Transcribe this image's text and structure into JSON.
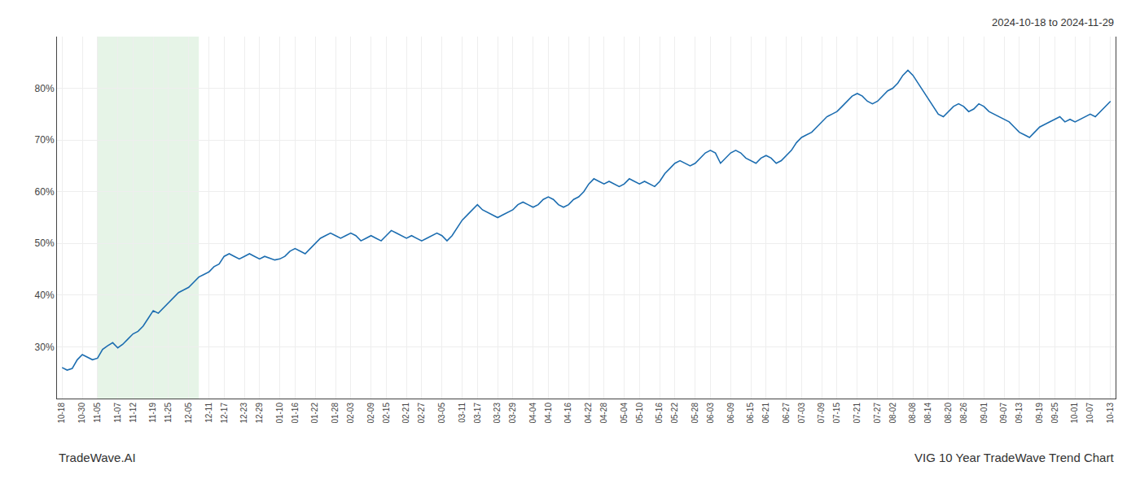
{
  "chart_data": {
    "type": "line",
    "annotations": [
      "2024-10-18 to 2024-11-29",
      "TradeWave.AI",
      "VIG 10 Year TradeWave Trend Chart"
    ],
    "color": "#1c6db0",
    "grid": true,
    "ylim": [
      20,
      90
    ],
    "yticks": [
      {
        "value": 30,
        "label": "30%"
      },
      {
        "value": 40,
        "label": "40%"
      },
      {
        "value": 50,
        "label": "50%"
      },
      {
        "value": 60,
        "label": "60%"
      },
      {
        "value": 70,
        "label": "70%"
      },
      {
        "value": 80,
        "label": "80%"
      }
    ],
    "shaded_range": {
      "start": 7,
      "end": 27,
      "color": "#c8e6c9"
    },
    "categories": [
      "10-18",
      null,
      null,
      null,
      "10-30",
      null,
      null,
      "11-05",
      null,
      null,
      null,
      "11-07",
      null,
      null,
      "11-12",
      null,
      null,
      null,
      "11-19",
      null,
      null,
      "11-25",
      null,
      null,
      null,
      "12-05",
      null,
      null,
      null,
      "12-11",
      null,
      null,
      "12-17",
      null,
      null,
      null,
      "12-23",
      null,
      null,
      "12-29",
      null,
      null,
      null,
      "01-10",
      null,
      null,
      "01-16",
      null,
      null,
      null,
      "01-22",
      null,
      null,
      null,
      "01-28",
      null,
      null,
      "02-03",
      null,
      null,
      null,
      "02-09",
      null,
      null,
      "02-15",
      null,
      null,
      null,
      "02-21",
      null,
      null,
      "02-27",
      null,
      null,
      null,
      "03-05",
      null,
      null,
      null,
      "03-11",
      null,
      null,
      "03-17",
      null,
      null,
      null,
      "03-23",
      null,
      null,
      "03-29",
      null,
      null,
      null,
      "04-04",
      null,
      null,
      "04-10",
      null,
      null,
      null,
      "04-16",
      null,
      null,
      null,
      "04-22",
      null,
      null,
      "04-28",
      null,
      null,
      null,
      "05-04",
      null,
      null,
      "05-10",
      null,
      null,
      null,
      "05-16",
      null,
      null,
      "05-22",
      null,
      null,
      null,
      "05-28",
      null,
      null,
      "06-03",
      null,
      null,
      null,
      "06-09",
      null,
      null,
      null,
      "06-15",
      null,
      null,
      "06-21",
      null,
      null,
      null,
      "06-27",
      null,
      null,
      "07-03",
      null,
      null,
      null,
      "07-09",
      null,
      null,
      "07-15",
      null,
      null,
      null,
      "07-21",
      null,
      null,
      null,
      "07-27",
      null,
      null,
      "08-02",
      null,
      null,
      null,
      "08-08",
      null,
      null,
      "08-14",
      null,
      null,
      null,
      "08-20",
      null,
      null,
      "08-26",
      null,
      null,
      null,
      "09-01",
      null,
      null,
      null,
      "09-07",
      null,
      null,
      "09-13",
      null,
      null,
      null,
      "09-19",
      null,
      null,
      "09-25",
      null,
      null,
      null,
      "10-01",
      null,
      null,
      "10-07",
      null,
      null,
      null,
      "10-13"
    ],
    "values": [
      26.0,
      25.5,
      25.8,
      27.5,
      28.5,
      28.0,
      27.5,
      27.8,
      29.5,
      30.2,
      30.8,
      29.8,
      30.5,
      31.5,
      32.5,
      33.0,
      34.0,
      35.5,
      37.0,
      36.5,
      37.5,
      38.5,
      39.5,
      40.5,
      41.0,
      41.5,
      42.5,
      43.5,
      44.0,
      44.5,
      45.5,
      46.0,
      47.5,
      48.0,
      47.5,
      47.0,
      47.5,
      48.0,
      47.5,
      47.0,
      47.5,
      47.2,
      46.8,
      47.0,
      47.5,
      48.5,
      49.0,
      48.5,
      48.0,
      49.0,
      50.0,
      51.0,
      51.5,
      52.0,
      51.5,
      51.0,
      51.5,
      52.0,
      51.5,
      50.5,
      51.0,
      51.5,
      51.0,
      50.5,
      51.5,
      52.5,
      52.0,
      51.5,
      51.0,
      51.5,
      51.0,
      50.5,
      51.0,
      51.5,
      52.0,
      51.5,
      50.5,
      51.5,
      53.0,
      54.5,
      55.5,
      56.5,
      57.5,
      56.5,
      56.0,
      55.5,
      55.0,
      55.5,
      56.0,
      56.5,
      57.5,
      58.0,
      57.5,
      57.0,
      57.5,
      58.5,
      59.0,
      58.5,
      57.5,
      57.0,
      57.5,
      58.5,
      59.0,
      60.0,
      61.5,
      62.5,
      62.0,
      61.5,
      62.0,
      61.5,
      61.0,
      61.5,
      62.5,
      62.0,
      61.5,
      62.0,
      61.5,
      61.0,
      62.0,
      63.5,
      64.5,
      65.5,
      66.0,
      65.5,
      65.0,
      65.5,
      66.5,
      67.5,
      68.0,
      67.5,
      65.5,
      66.5,
      67.5,
      68.0,
      67.5,
      66.5,
      66.0,
      65.5,
      66.5,
      67.0,
      66.5,
      65.5,
      66.0,
      67.0,
      68.0,
      69.5,
      70.5,
      71.0,
      71.5,
      72.5,
      73.5,
      74.5,
      75.0,
      75.5,
      76.5,
      77.5,
      78.5,
      79.0,
      78.5,
      77.5,
      77.0,
      77.5,
      78.5,
      79.5,
      80.0,
      81.0,
      82.5,
      83.5,
      82.5,
      81.0,
      79.5,
      78.0,
      76.5,
      75.0,
      74.5,
      75.5,
      76.5,
      77.0,
      76.5,
      75.5,
      76.0,
      77.0,
      76.5,
      75.5,
      75.0,
      74.5,
      74.0,
      73.5,
      72.5,
      71.5,
      71.0,
      70.5,
      71.5,
      72.5,
      73.0,
      73.5,
      74.0,
      74.5,
      73.5,
      74.0,
      73.5,
      74.0,
      74.5,
      75.0,
      74.5,
      75.5,
      76.5,
      77.5
    ]
  }
}
